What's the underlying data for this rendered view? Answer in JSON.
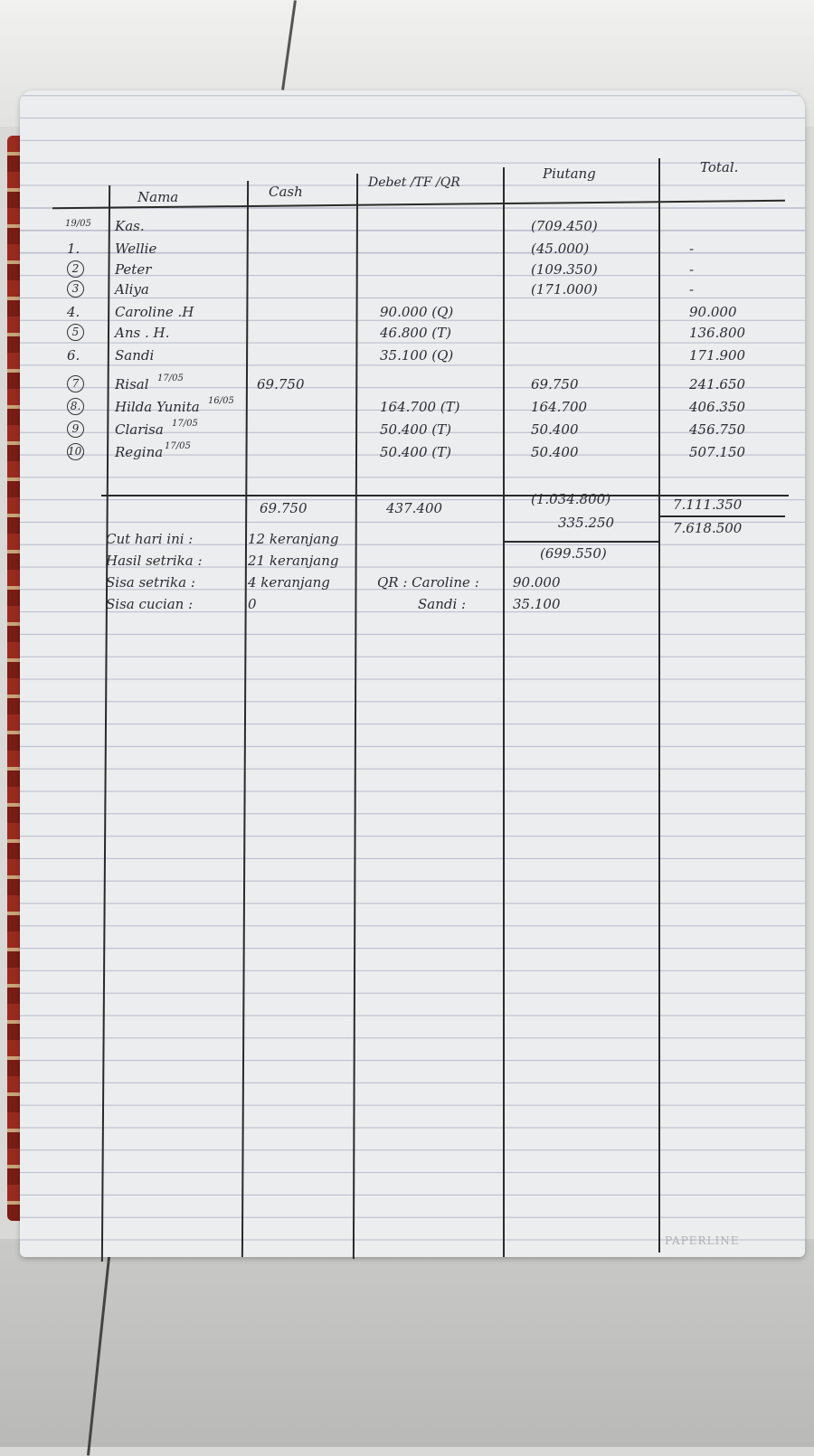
{
  "ledger": {
    "headers": {
      "nama": "Nama",
      "cash": "Cash",
      "debet": "Debet /TF /QR",
      "piutang": "Piutang",
      "total": "Total."
    },
    "date": "19/05",
    "rows": [
      {
        "no": "",
        "name": "Kas.",
        "note": "",
        "cash": "",
        "debet": "",
        "piutang": "(709.450)",
        "total": ""
      },
      {
        "no": "1.",
        "name": "Wellie",
        "note": "",
        "cash": "",
        "debet": "",
        "piutang": "(45.000)",
        "total": "-"
      },
      {
        "no": "2",
        "name": "Peter",
        "note": "",
        "cash": "",
        "debet": "",
        "piutang": "(109.350)",
        "total": "-"
      },
      {
        "no": "3",
        "name": "Aliya",
        "note": "",
        "cash": "",
        "debet": "",
        "piutang": "(171.000)",
        "total": "-"
      },
      {
        "no": "4.",
        "name": "Caroline .H",
        "note": "",
        "cash": "",
        "debet": "90.000 (Q)",
        "piutang": "",
        "total": "90.000"
      },
      {
        "no": "5",
        "name": "Ans . H.",
        "note": "",
        "cash": "",
        "debet": "46.800 (T)",
        "piutang": "",
        "total": "136.800"
      },
      {
        "no": "6.",
        "name": "Sandi",
        "note": "",
        "cash": "",
        "debet": "35.100 (Q)",
        "piutang": "",
        "total": "171.900"
      },
      {
        "no": "7",
        "name": "Risal",
        "note": "17/05",
        "cash": "69.750",
        "debet": "",
        "piutang": "69.750",
        "total": "241.650"
      },
      {
        "no": "8.",
        "name": "Hilda Yunita",
        "note": "16/05",
        "cash": "",
        "debet": "164.700 (T)",
        "piutang": "164.700",
        "total": "406.350"
      },
      {
        "no": "9",
        "name": "Clarisa",
        "note": "17/05",
        "cash": "",
        "debet": "50.400 (T)",
        "piutang": "50.400",
        "total": "456.750"
      },
      {
        "no": "10.",
        "name": "Regina",
        "note": "17/05",
        "cash": "",
        "debet": "50.400 (T)",
        "piutang": "50.400",
        "total": "507.150"
      }
    ],
    "totals": {
      "cash": "69.750",
      "debet": "437.400",
      "piutang": "(1.034.800)",
      "piutang2": "335.250",
      "piutang3": "(699.550)",
      "total": "7.111.350",
      "total2": "7.618.500"
    },
    "summary": [
      {
        "label": "Cut hari ini :",
        "value": "12 keranjang"
      },
      {
        "label": "Hasil setrika :",
        "value": "21 keranjang"
      },
      {
        "label": "Sisa setrika :",
        "value": "4 keranjang"
      },
      {
        "label": "Sisa cucian :",
        "value": "0"
      }
    ],
    "qr_notes": [
      {
        "label": "QR : Caroline :",
        "value": "90.000"
      },
      {
        "label": "Sandi :",
        "value": "35.100"
      }
    ]
  },
  "brand": "PAPERLINE"
}
